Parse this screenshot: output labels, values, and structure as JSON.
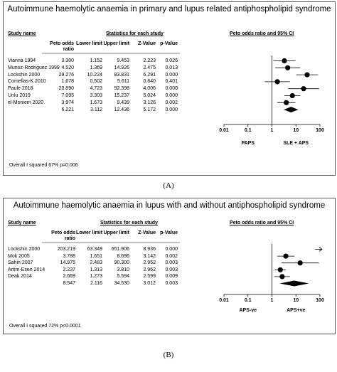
{
  "chart_data": [
    {
      "type": "forest",
      "title": "Autoimmune haemolytic anaemia in primary and lupus related  antiphospholipid syndrome",
      "study_header": "Study name",
      "stats_header": "Statistics for each study",
      "plot_header": "Peto odds ratio and 95% CI",
      "columns": [
        "Peto odds ratio",
        "Lower limit",
        "Upper limit",
        "Z-Value",
        "p-Value"
      ],
      "studies": [
        {
          "name": "Vianna 1994",
          "or": "3.300",
          "lower": "1.152",
          "upper": "9.453",
          "z": "2.223",
          "p": "0.026"
        },
        {
          "name": "Munoz-Rodriguez 1999",
          "or": "4.520",
          "lower": "1.369",
          "upper": "14.926",
          "z": "2.475",
          "p": "0.013"
        },
        {
          "name": "Lockshin 2000",
          "or": "29.276",
          "lower": "10.224",
          "upper": "83.831",
          "z": "6.291",
          "p": "0.000"
        },
        {
          "name": "Comellas-K 2010",
          "or": "1.678",
          "lower": "0.502",
          "upper": "5.611",
          "z": "0.840",
          "p": "0.401"
        },
        {
          "name": "Paule 2018",
          "or": "20.890",
          "lower": "4.723",
          "upper": "92.398",
          "z": "4.006",
          "p": "0.000"
        },
        {
          "name": "Unlu 2019",
          "or": "7.095",
          "lower": "3.303",
          "upper": "15.237",
          "z": "5.024",
          "p": "0.000"
        },
        {
          "name": "el-Moniem 2020",
          "or": "3.974",
          "lower": "1.673",
          "upper": "9.439",
          "z": "3.126",
          "p": "0.002"
        }
      ],
      "pooled": {
        "or": "6.221",
        "lower": "3.112",
        "upper": "12.436",
        "z": "5.172",
        "p": "0.000"
      },
      "axis_ticks": [
        "0.01",
        "0.1",
        "1",
        "10",
        "100"
      ],
      "favours_left": "PAPS",
      "favours_right": "SLE + APS",
      "heterogeneity": "Overall I squared 67% p=0.006",
      "panel_label": "(A)"
    },
    {
      "type": "forest",
      "title": "Autoimmune haemolytic anaemia in lupus with and without antiphospholipid syndrome",
      "study_header": "Study name",
      "stats_header": "Statistics for each study",
      "plot_header": "Peto odds ratio and 95% CI",
      "columns": [
        "Peto odds ratio",
        "Lower limit",
        "Upper limit",
        "Z-Value",
        "p-Value"
      ],
      "studies": [
        {
          "name": "Lockshin 2000",
          "or": "203.219",
          "lower": "63.349",
          "upper": "651.906",
          "z": "8.936",
          "p": "0.000"
        },
        {
          "name": "Mok 2005",
          "or": "3.788",
          "lower": "1.651",
          "upper": "8.696",
          "z": "3.142",
          "p": "0.002"
        },
        {
          "name": "Sahin 2007",
          "or": "14.975",
          "lower": "2.483",
          "upper": "90.300",
          "z": "2.952",
          "p": "0.003"
        },
        {
          "name": "Artim-Esen 2014",
          "or": "2.237",
          "lower": "1.313",
          "upper": "3.810",
          "z": "2.962",
          "p": "0.003"
        },
        {
          "name": "Deak 2014",
          "or": "2.669",
          "lower": "1.273",
          "upper": "5.594",
          "z": "2.599",
          "p": "0.009"
        }
      ],
      "pooled": {
        "or": "8.547",
        "lower": "2.116",
        "upper": "34.530",
        "z": "3.012",
        "p": "0.003"
      },
      "axis_ticks": [
        "0.01",
        "0.1",
        "1",
        "10",
        "100"
      ],
      "favours_left": "APS-ve",
      "favours_right": "APS+ve",
      "heterogeneity": "Overall I squared 72% p<0.0001",
      "panel_label": "(B)"
    }
  ]
}
